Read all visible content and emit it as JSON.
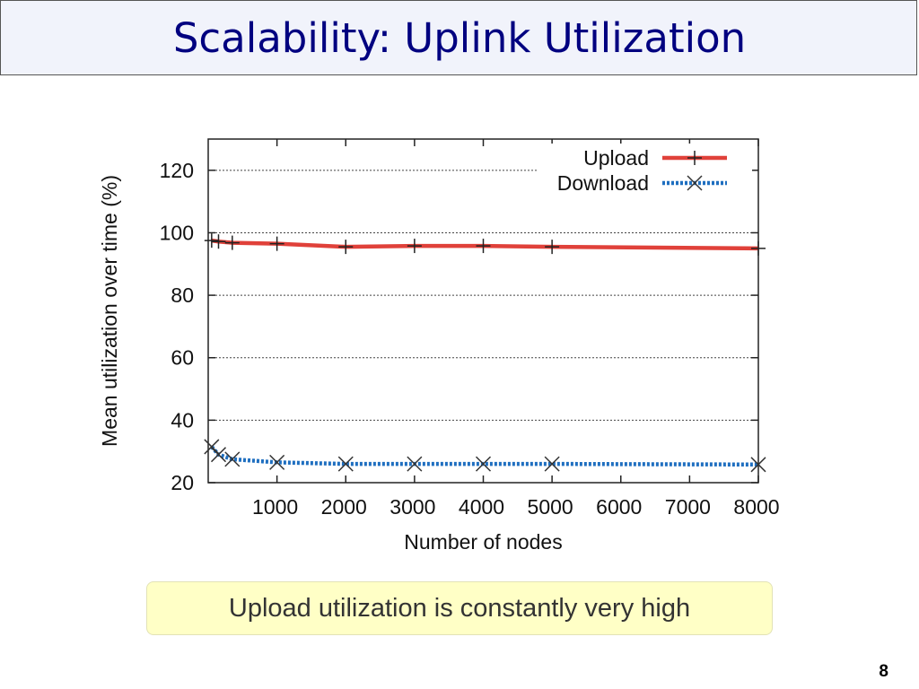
{
  "slide": {
    "title": "Scalability: Uplink Utilization",
    "callout": "Upload utilization is constantly very high",
    "page_number": "8"
  },
  "chart_data": {
    "type": "line",
    "title": "",
    "xlabel": "Number of nodes",
    "ylabel": "Mean utilization over time (%)",
    "xlim": [
      0,
      8000
    ],
    "ylim": [
      20,
      130
    ],
    "xticks": [
      1000,
      2000,
      3000,
      4000,
      5000,
      6000,
      7000,
      8000
    ],
    "yticks": [
      20,
      40,
      60,
      80,
      100,
      120
    ],
    "grid": "horizontal-dotted",
    "legend_position": "top-right",
    "series": [
      {
        "name": "Upload",
        "color": "#e0413a",
        "line_style": "solid",
        "marker": "plus",
        "x": [
          50,
          150,
          350,
          1000,
          2000,
          3000,
          4000,
          5000,
          8000
        ],
        "y": [
          97.5,
          97.2,
          96.8,
          96.5,
          95.5,
          95.8,
          95.8,
          95.5,
          95.0
        ]
      },
      {
        "name": "Download",
        "color": "#1f6fc0",
        "line_style": "dotted",
        "marker": "x",
        "x": [
          50,
          150,
          350,
          1000,
          2000,
          3000,
          4000,
          5000,
          8000
        ],
        "y": [
          31.5,
          29.0,
          27.5,
          26.5,
          26.0,
          26.0,
          26.0,
          26.0,
          25.8
        ]
      }
    ]
  }
}
